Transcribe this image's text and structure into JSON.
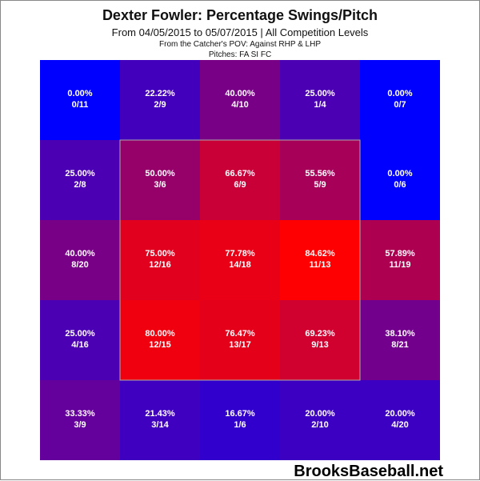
{
  "title": "Dexter Fowler: Percentage Swings/Pitch",
  "subtitle": "From 04/05/2015 to 05/07/2015 | All Competition Levels",
  "note_line1": "From the Catcher's POV:   Against RHP & LHP",
  "note_line2": "Pitches:  FA  SI  FC",
  "brand": "BrooksBaseball.net",
  "colors": {
    "low": "#0000ff",
    "high": "#ff0000",
    "zone_border": "#aaaaaa"
  },
  "chart_data": {
    "type": "heatmap",
    "title": "Dexter Fowler: Percentage Swings/Pitch",
    "rows": 5,
    "cols": 5,
    "strike_zone": {
      "rows": [
        1,
        3
      ],
      "cols": [
        1,
        3
      ]
    },
    "cells": [
      [
        {
          "pct": "0.00%",
          "ratio": "0/11",
          "value": 0.0
        },
        {
          "pct": "22.22%",
          "ratio": "2/9",
          "value": 22.22
        },
        {
          "pct": "40.00%",
          "ratio": "4/10",
          "value": 40.0
        },
        {
          "pct": "25.00%",
          "ratio": "1/4",
          "value": 25.0
        },
        {
          "pct": "0.00%",
          "ratio": "0/7",
          "value": 0.0
        }
      ],
      [
        {
          "pct": "25.00%",
          "ratio": "2/8",
          "value": 25.0
        },
        {
          "pct": "50.00%",
          "ratio": "3/6",
          "value": 50.0
        },
        {
          "pct": "66.67%",
          "ratio": "6/9",
          "value": 66.67
        },
        {
          "pct": "55.56%",
          "ratio": "5/9",
          "value": 55.56
        },
        {
          "pct": "0.00%",
          "ratio": "0/6",
          "value": 0.0
        }
      ],
      [
        {
          "pct": "40.00%",
          "ratio": "8/20",
          "value": 40.0
        },
        {
          "pct": "75.00%",
          "ratio": "12/16",
          "value": 75.0
        },
        {
          "pct": "77.78%",
          "ratio": "14/18",
          "value": 77.78
        },
        {
          "pct": "84.62%",
          "ratio": "11/13",
          "value": 84.62
        },
        {
          "pct": "57.89%",
          "ratio": "11/19",
          "value": 57.89
        }
      ],
      [
        {
          "pct": "25.00%",
          "ratio": "4/16",
          "value": 25.0
        },
        {
          "pct": "80.00%",
          "ratio": "12/15",
          "value": 80.0
        },
        {
          "pct": "76.47%",
          "ratio": "13/17",
          "value": 76.47
        },
        {
          "pct": "69.23%",
          "ratio": "9/13",
          "value": 69.23
        },
        {
          "pct": "38.10%",
          "ratio": "8/21",
          "value": 38.1
        }
      ],
      [
        {
          "pct": "33.33%",
          "ratio": "3/9",
          "value": 33.33
        },
        {
          "pct": "21.43%",
          "ratio": "3/14",
          "value": 21.43
        },
        {
          "pct": "16.67%",
          "ratio": "1/6",
          "value": 16.67
        },
        {
          "pct": "20.00%",
          "ratio": "2/10",
          "value": 20.0
        },
        {
          "pct": "20.00%",
          "ratio": "4/20",
          "value": 20.0
        }
      ]
    ]
  }
}
